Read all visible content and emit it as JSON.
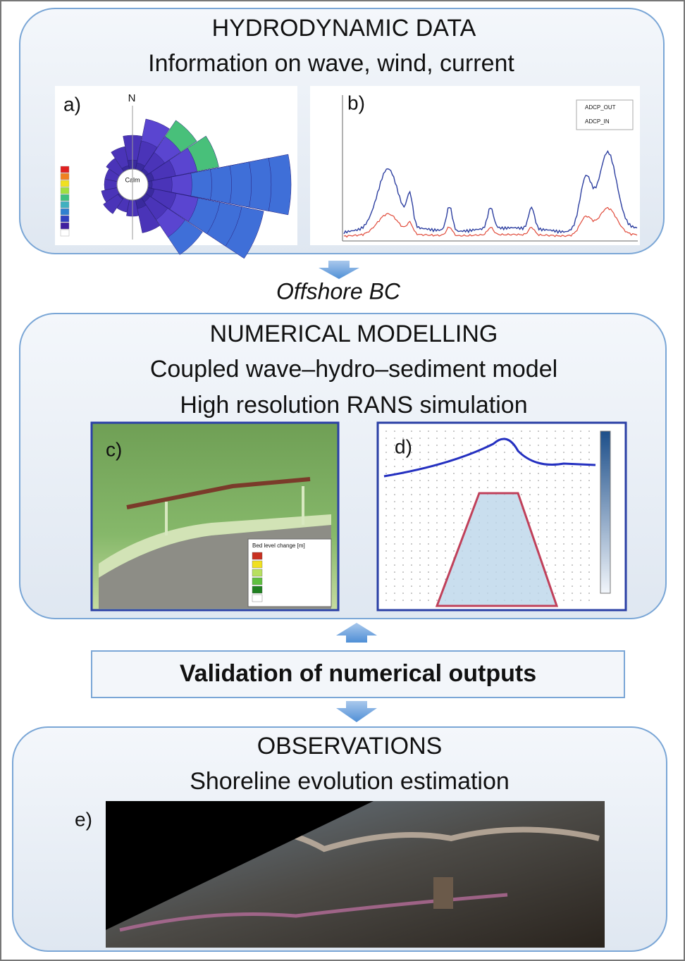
{
  "hydrodynamic": {
    "title": "HYDRODYNAMIC DATA",
    "subtitle": "Information on wave, wind, current",
    "panel_a": {
      "label": "a)",
      "north": "N",
      "calm": "Calm"
    },
    "panel_b": {
      "label": "b)",
      "legend": [
        "ADCP_OUT",
        "ADCP_IN"
      ]
    }
  },
  "offshore_bc": "Offshore BC",
  "numerical": {
    "title": "NUMERICAL MODELLING",
    "lines": [
      "Coupled wave–hydro–sediment model",
      "High resolution RANS simulation"
    ],
    "panel_c": {
      "label": "c)",
      "legend_title": "Bed level change [m]"
    },
    "panel_d": {
      "label": "d)"
    }
  },
  "validation": "Validation of numerical outputs",
  "observations": {
    "title": "OBSERVATIONS",
    "subtitle": "Shoreline evolution estimation",
    "panel_e": {
      "label": "e)"
    }
  }
}
